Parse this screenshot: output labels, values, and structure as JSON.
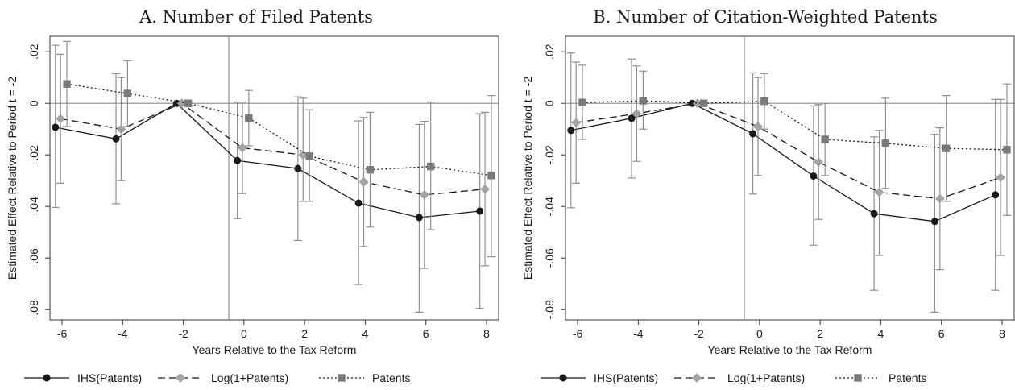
{
  "chart_data": [
    {
      "type": "line",
      "title": "A. Number of Filed Patents",
      "xlabel": "Years Relative to the Tax Reform",
      "ylabel": "Estimated Effect Relative to Period t = -2",
      "xlim": [
        -6.4,
        8.4
      ],
      "ylim": [
        -0.084,
        0.026
      ],
      "xticks": [
        -6,
        -4,
        -2,
        0,
        2,
        4,
        6,
        8
      ],
      "xtick_labels": [
        "-6",
        "-4",
        "-2",
        "0",
        "2",
        "4",
        "6",
        "8"
      ],
      "yticks": [
        -0.08,
        -0.06,
        -0.04,
        -0.02,
        0,
        0.02
      ],
      "ytick_labels": [
        "-.08",
        "-.06",
        "-.04",
        "-.02",
        "0",
        ".02"
      ],
      "reference_lines": {
        "horizontal_y": 0,
        "vertical_x": -0.5
      },
      "grid": false,
      "legend_position": "bottom",
      "series": [
        {
          "name": "IHS(Patents)",
          "line": "solid",
          "marker": "circle",
          "color": "#1a1a1a",
          "x": [
            -6,
            -4,
            -2,
            0,
            2,
            4,
            6,
            8
          ],
          "y": [
            -0.0093,
            -0.0138,
            0,
            -0.0222,
            -0.0253,
            -0.0387,
            -0.0443,
            -0.0418
          ],
          "ci_low": [
            -0.0404,
            -0.039,
            0,
            -0.0447,
            -0.0532,
            -0.0703,
            -0.081,
            -0.0795
          ],
          "ci_high": [
            0.0225,
            0.0115,
            0,
            0.0005,
            0.0025,
            -0.0068,
            -0.0082,
            -0.004
          ]
        },
        {
          "name": "Log(1+Patents)",
          "line": "dashed",
          "marker": "diamond",
          "color": "#a3a3a3",
          "x": [
            -6,
            -4,
            -2,
            0,
            2,
            4,
            6,
            8
          ],
          "y": [
            -0.006,
            -0.01,
            0,
            -0.0173,
            -0.02,
            -0.0305,
            -0.0355,
            -0.0333
          ],
          "ci_low": [
            -0.031,
            -0.03,
            0,
            -0.035,
            -0.038,
            -0.0555,
            -0.064,
            -0.063
          ],
          "ci_high": [
            0.019,
            0.01,
            0,
            0.0005,
            0.002,
            -0.0055,
            -0.007,
            -0.0035
          ]
        },
        {
          "name": "Patents",
          "line": "dotted",
          "marker": "square",
          "color": "#7a7a7a",
          "x": [
            -6,
            -4,
            -2,
            0,
            2,
            4,
            6,
            8
          ],
          "y": [
            0.0075,
            0.0038,
            0,
            -0.0057,
            -0.0205,
            -0.0258,
            -0.0245,
            -0.028
          ],
          "ci_low": [
            -0.009,
            -0.009,
            0,
            -0.0165,
            -0.038,
            -0.048,
            -0.049,
            -0.0595
          ],
          "ci_high": [
            0.024,
            0.0165,
            0,
            0.005,
            -0.0025,
            -0.0035,
            0.0005,
            0.003
          ]
        }
      ]
    },
    {
      "type": "line",
      "title": "B. Number of Citation-Weighted Patents",
      "xlabel": "Years Relative to the Tax Reform",
      "ylabel": "Estimated Effect Relative to Period t = -2",
      "xlim": [
        -6.4,
        8.4
      ],
      "ylim": [
        -0.084,
        0.026
      ],
      "xticks": [
        -6,
        -4,
        -2,
        0,
        2,
        4,
        6,
        8
      ],
      "xtick_labels": [
        "-6",
        "-4",
        "-2",
        "0",
        "2",
        "4",
        "6",
        "8"
      ],
      "yticks": [
        -0.08,
        -0.06,
        -0.04,
        -0.02,
        0,
        0.02
      ],
      "ytick_labels": [
        "-.08",
        "-.06",
        "-.04",
        "-.02",
        "0",
        ".02"
      ],
      "reference_lines": {
        "horizontal_y": 0,
        "vertical_x": -0.5
      },
      "grid": false,
      "legend_position": "bottom",
      "series": [
        {
          "name": "IHS(Patents)",
          "line": "solid",
          "marker": "circle",
          "color": "#1a1a1a",
          "x": [
            -6,
            -4,
            -2,
            0,
            2,
            4,
            6,
            8
          ],
          "y": [
            -0.0105,
            -0.0058,
            0,
            -0.0118,
            -0.0282,
            -0.0428,
            -0.0458,
            -0.0355
          ],
          "ci_low": [
            -0.0405,
            -0.029,
            0,
            -0.0352,
            -0.055,
            -0.0725,
            -0.081,
            -0.0725
          ],
          "ci_high": [
            0.0195,
            0.0172,
            0,
            0.0118,
            -0.001,
            -0.013,
            -0.012,
            0.0015
          ]
        },
        {
          "name": "Log(1+Patents)",
          "line": "dashed",
          "marker": "diamond",
          "color": "#a3a3a3",
          "x": [
            -6,
            -4,
            -2,
            0,
            2,
            4,
            6,
            8
          ],
          "y": [
            -0.0075,
            -0.004,
            0,
            -0.009,
            -0.0228,
            -0.0345,
            -0.037,
            -0.0288
          ],
          "ci_low": [
            -0.031,
            -0.0225,
            0,
            -0.028,
            -0.045,
            -0.059,
            -0.0645,
            -0.059
          ],
          "ci_high": [
            0.016,
            0.0145,
            0,
            0.01,
            -0.0005,
            -0.0105,
            -0.0095,
            0.0015
          ]
        },
        {
          "name": "Patents",
          "line": "dotted",
          "marker": "square",
          "color": "#7a7a7a",
          "x": [
            -6,
            -4,
            -2,
            0,
            2,
            4,
            6,
            8
          ],
          "y": [
            0.0003,
            0.001,
            0,
            0.0008,
            -0.014,
            -0.0155,
            -0.0175,
            -0.018
          ],
          "ci_low": [
            -0.014,
            -0.01,
            0,
            -0.01,
            -0.028,
            -0.033,
            -0.038,
            -0.0435
          ],
          "ci_high": [
            0.0148,
            0.0125,
            0,
            0.0115,
            0.0,
            0.002,
            0.003,
            0.0075
          ]
        }
      ]
    }
  ]
}
